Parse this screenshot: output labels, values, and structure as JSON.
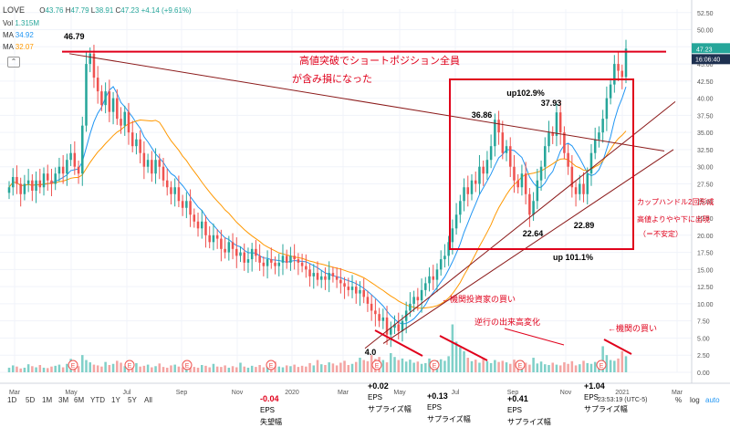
{
  "ticker": "LOVE",
  "ohlc": {
    "o_label": "O",
    "o": "43.76",
    "h_label": "H",
    "h": "47.79",
    "l_label": "L",
    "l": "38.91",
    "c_label": "C",
    "c": "47.23",
    "change": "+4.14 (+9.61%)"
  },
  "vol_label": "Vol",
  "vol_value": "1.315M",
  "ma_rows": [
    {
      "label": "MA",
      "value": "34.92",
      "color": "#2196f3"
    },
    {
      "label": "MA",
      "value": "32.07",
      "color": "#ff9800"
    }
  ],
  "price_tag": "47.23",
  "countdown_tag": "16:06:40",
  "time_zone": "23:53:19 (UTC-5)",
  "timeframes": [
    "1D",
    "5D",
    "1M",
    "3M",
    "6M",
    "YTD",
    "1Y",
    "5Y",
    "All"
  ],
  "right_controls": {
    "percent": "%",
    "log": "log",
    "auto": "auto"
  },
  "earnings_marker": "E",
  "chart_data": {
    "type": "candlestick",
    "colors": {
      "up": "#26a69a",
      "down": "#ef5350",
      "ma_fast": "#2196f3",
      "ma_slow": "#ff9800",
      "annotation": "#e0001b",
      "trend": "#8b1a1a"
    },
    "x_tick_labels": [
      "Mar",
      "May",
      "Jul",
      "Sep",
      "Nov",
      "2020",
      "Mar",
      "May",
      "Jul",
      "Sep",
      "Nov",
      "2021",
      "Mar"
    ],
    "y_ticks": [
      0,
      2.5,
      5,
      7.5,
      10,
      12.5,
      15,
      17.5,
      20,
      22.5,
      25,
      27.5,
      30,
      32.5,
      35,
      37.5,
      40,
      42.5,
      45,
      47.5,
      50,
      52.5
    ],
    "y_tick_labels": [
      "0.00",
      "2.50",
      "5.00",
      "7.50",
      "10.00",
      "12.50",
      "15.00",
      "17.50",
      "20.00",
      "22.50",
      "25.00",
      "27.50",
      "30.00",
      "32.50",
      "35.00",
      "37.50",
      "40.00",
      "42.50",
      "45.00",
      "47.50",
      "50.00",
      "52.50"
    ],
    "ylim": [
      0,
      53
    ],
    "candles_close": [
      27,
      28.5,
      27.5,
      26,
      27.5,
      28,
      26.5,
      28,
      27,
      29,
      28,
      27.5,
      29,
      30,
      29,
      31,
      32,
      30,
      29,
      36,
      45,
      46.5,
      43,
      41,
      39,
      41,
      38,
      40,
      37,
      36,
      38,
      35,
      33,
      34,
      32,
      30,
      31,
      29,
      31,
      30,
      28,
      27,
      26,
      27,
      25,
      24,
      25,
      23,
      22,
      21,
      22,
      20,
      19,
      20,
      19.5,
      18,
      17.5,
      19,
      18,
      17,
      17.5,
      16,
      16.5,
      18,
      17,
      16,
      15.5,
      16.5,
      16,
      15.5,
      16,
      17,
      16,
      17,
      16.5,
      16,
      15.5,
      15,
      14,
      14.5,
      13.5,
      14,
      13.5,
      14.5,
      14,
      13.5,
      13,
      12.5,
      12,
      12.5,
      11.5,
      12,
      11,
      10,
      9,
      8.5,
      7.5,
      8,
      5.5,
      6.5,
      7,
      6,
      7.5,
      9,
      10,
      11,
      10.5,
      12,
      13,
      14,
      13.5,
      15,
      16.5,
      17,
      19,
      21,
      23,
      25,
      27,
      26,
      28,
      27.5,
      30,
      29,
      31,
      33,
      36.86,
      35,
      32,
      33,
      30,
      28,
      27,
      29,
      26,
      23,
      25,
      28,
      30,
      33,
      35,
      34.5,
      37.93,
      35,
      32,
      30,
      27,
      26,
      27.5,
      26,
      29,
      32,
      34,
      35,
      37,
      40,
      42,
      45,
      44,
      43.1,
      47.23
    ],
    "volume_bars": [
      1.2,
      1.8,
      1.5,
      1.0,
      1.2,
      2.1,
      1.6,
      1.3,
      1.9,
      1.2,
      1.1,
      1.5,
      1.7,
      2.0,
      1.3,
      2.2,
      3.5,
      2.8,
      1.6,
      4.5,
      3.2,
      2.6,
      2.0,
      1.8,
      1.5,
      2.7,
      1.9,
      2.2,
      3.0,
      2.5,
      1.6,
      2.1,
      1.8,
      2.4,
      1.5,
      1.7,
      2.0,
      1.3,
      1.6,
      2.3,
      1.4,
      1.2,
      1.8,
      2.0,
      1.5,
      1.3,
      1.6,
      2.1,
      1.4,
      1.2,
      1.9,
      1.7,
      1.3,
      2.2,
      1.5,
      1.4,
      1.8,
      1.2,
      1.6,
      1.3,
      2.5,
      1.5,
      1.2,
      1.7,
      1.4,
      1.9,
      1.3,
      1.6,
      1.4,
      2.8,
      1.5,
      1.3,
      1.8,
      1.6,
      2.0,
      1.4,
      1.7,
      1.5,
      2.4,
      1.8,
      3.2,
      2.1,
      1.9,
      2.6,
      2.3,
      1.8,
      2.5,
      3.0,
      1.9,
      2.2,
      2.7,
      3.8,
      3.2,
      2.9,
      4.5,
      3.5,
      4.0,
      3.2,
      2.6,
      5.0,
      4.0,
      3.2,
      3.6,
      2.8,
      3.3,
      2.5,
      2.8,
      2.2,
      2.4,
      3.6,
      2.8,
      3.1,
      3.4,
      3.0,
      4.2,
      12.5,
      8.0,
      6.5,
      5.5,
      3.8,
      2.9,
      3.3,
      2.5,
      3.6,
      2.9,
      2.4,
      3.2,
      2.7,
      3.0,
      2.6,
      2.2,
      3.3,
      2.7,
      3.1,
      2.5,
      2.0,
      3.8,
      2.3,
      2.8,
      2.1,
      1.9,
      2.5,
      2.0,
      1.8,
      2.6,
      2.2,
      2.9,
      1.8,
      2.1,
      3.0,
      2.4,
      2.2,
      2.7,
      2.5,
      6.8,
      4.5,
      3.2,
      3.0,
      3.6,
      5.5,
      4.2,
      6.2,
      4.8,
      3.9
    ],
    "labels": [
      "46.79",
      "36.86",
      "37.93",
      "22.64",
      "22.89",
      "4.0",
      "up102.9%",
      "up 101.1%"
    ],
    "annotations": {
      "breakout_title_1": "高値突破でショートポジション全員",
      "breakout_title_2": "が含み損になった",
      "cup_1": "カップハンドル2回形成",
      "cup_2": "高値よりやや下に出現",
      "cup_3": "（＝不安定）",
      "inst_buy_1": "←機関投資家の買い",
      "reverse_vol": "逆行の出来高変化",
      "inst_buy_2": "←機関の買い"
    },
    "eps": [
      {
        "value": "-0.04",
        "label": "EPS",
        "sub": "失望幅",
        "color": "#e0001b"
      },
      {
        "value": "+0.02",
        "label": "EPS",
        "sub": "サプライズ幅",
        "color": "#000"
      },
      {
        "value": "+0.13",
        "label": "EPS",
        "sub": "サプライズ幅",
        "color": "#000"
      },
      {
        "value": "+0.41",
        "label": "EPS",
        "sub": "サプライズ幅",
        "color": "#000"
      },
      {
        "value": "+1.04",
        "label": "EPS",
        "sub": "サプライズ幅",
        "color": "#000"
      }
    ]
  }
}
